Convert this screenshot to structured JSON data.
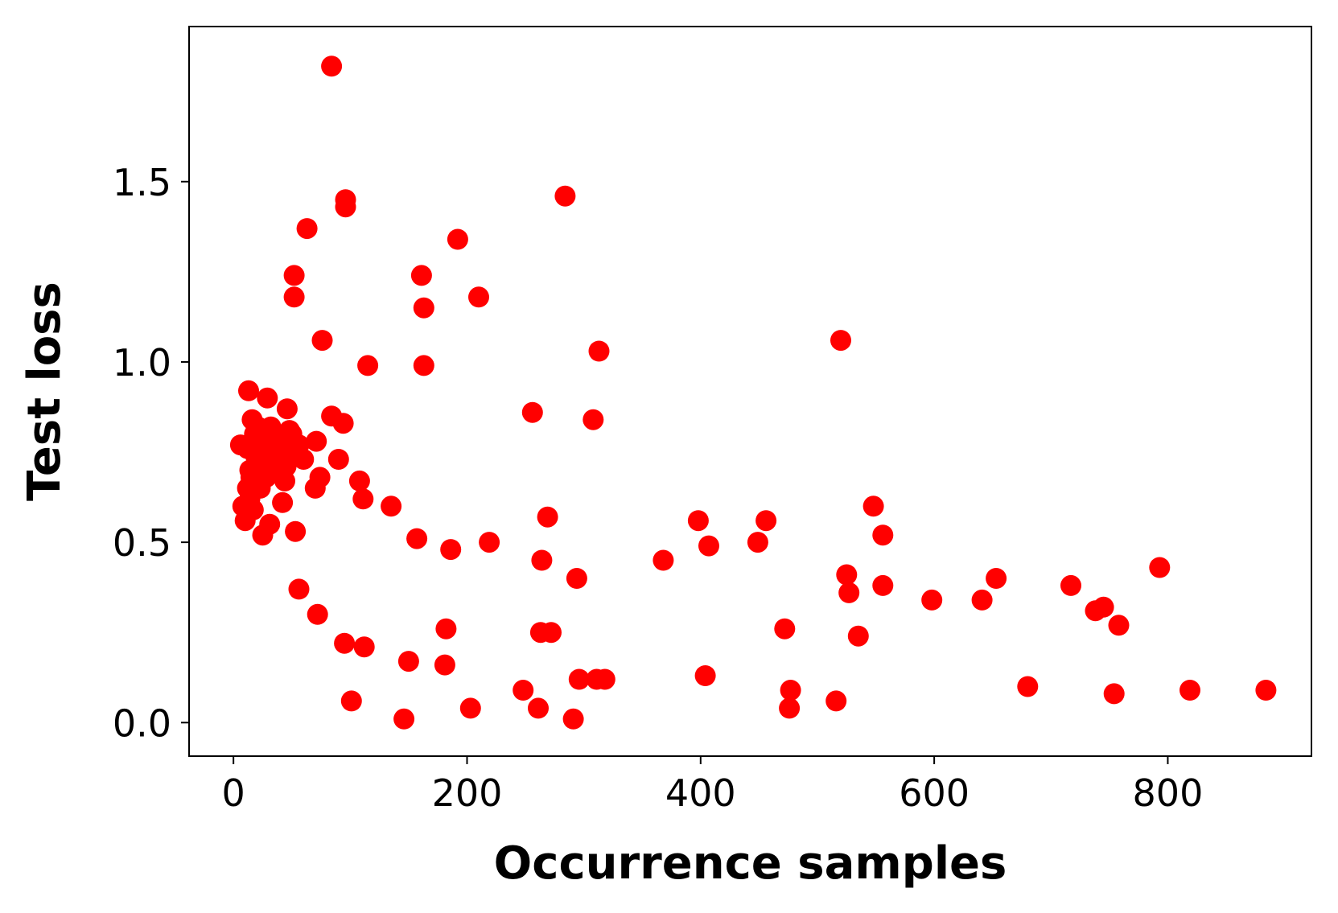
{
  "chart_data": {
    "type": "scatter",
    "title": "",
    "xlabel": "Occurrence samples",
    "ylabel": "Test loss",
    "xlim": [
      -38,
      923
    ],
    "ylim": [
      -0.093,
      1.93
    ],
    "xticks": [
      0,
      200,
      400,
      600,
      800
    ],
    "xtick_labels": [
      "0",
      "200",
      "400",
      "600",
      "800"
    ],
    "yticks": [
      0.0,
      0.5,
      1.0,
      1.5
    ],
    "ytick_labels": [
      "0.0",
      "0.5",
      "1.0",
      "1.5"
    ],
    "grid": false,
    "marker_color": "#ff0000",
    "series": [
      {
        "points": [
          [
            84,
            1.82
          ],
          [
            284,
            1.46
          ],
          [
            96,
            1.45
          ],
          [
            96,
            1.43
          ],
          [
            63,
            1.37
          ],
          [
            192,
            1.34
          ],
          [
            52,
            1.24
          ],
          [
            161,
            1.24
          ],
          [
            52,
            1.18
          ],
          [
            210,
            1.18
          ],
          [
            163,
            1.15
          ],
          [
            520,
            1.06
          ],
          [
            76,
            1.06
          ],
          [
            313,
            1.03
          ],
          [
            115,
            0.99
          ],
          [
            163,
            0.99
          ],
          [
            256,
            0.86
          ],
          [
            308,
            0.84
          ],
          [
            13,
            0.92
          ],
          [
            29,
            0.9
          ],
          [
            46,
            0.87
          ],
          [
            84,
            0.85
          ],
          [
            94,
            0.83
          ],
          [
            71,
            0.78
          ],
          [
            90,
            0.73
          ],
          [
            108,
            0.67
          ],
          [
            111,
            0.62
          ],
          [
            135,
            0.6
          ],
          [
            74,
            0.68
          ],
          [
            70,
            0.65
          ],
          [
            6,
            0.77
          ],
          [
            8,
            0.6
          ],
          [
            10,
            0.56
          ],
          [
            12,
            0.65
          ],
          [
            14,
            0.7
          ],
          [
            16,
            0.84
          ],
          [
            18,
            0.8
          ],
          [
            20,
            0.76
          ],
          [
            22,
            0.73
          ],
          [
            24,
            0.78
          ],
          [
            26,
            0.72
          ],
          [
            28,
            0.68
          ],
          [
            30,
            0.74
          ],
          [
            32,
            0.82
          ],
          [
            34,
            0.77
          ],
          [
            36,
            0.7
          ],
          [
            38,
            0.75
          ],
          [
            40,
            0.79
          ],
          [
            42,
            0.61
          ],
          [
            44,
            0.67
          ],
          [
            48,
            0.81
          ],
          [
            50,
            0.8
          ],
          [
            56,
            0.77
          ],
          [
            60,
            0.73
          ],
          [
            12,
            0.76
          ],
          [
            14,
            0.62
          ],
          [
            17,
            0.59
          ],
          [
            19,
            0.74
          ],
          [
            21,
            0.82
          ],
          [
            23,
            0.65
          ],
          [
            25,
            0.52
          ],
          [
            27,
            0.69
          ],
          [
            31,
            0.55
          ],
          [
            33,
            0.71
          ],
          [
            35,
            0.78
          ],
          [
            37,
            0.75
          ],
          [
            39,
            0.73
          ],
          [
            41,
            0.69
          ],
          [
            43,
            0.76
          ],
          [
            45,
            0.71
          ],
          [
            47,
            0.73
          ],
          [
            15,
            0.68
          ],
          [
            53,
            0.53
          ],
          [
            157,
            0.51
          ],
          [
            186,
            0.48
          ],
          [
            219,
            0.5
          ],
          [
            269,
            0.57
          ],
          [
            264,
            0.45
          ],
          [
            294,
            0.4
          ],
          [
            368,
            0.45
          ],
          [
            398,
            0.56
          ],
          [
            407,
            0.49
          ],
          [
            449,
            0.5
          ],
          [
            456,
            0.56
          ],
          [
            548,
            0.6
          ],
          [
            556,
            0.52
          ],
          [
            525,
            0.41
          ],
          [
            527,
            0.36
          ],
          [
            556,
            0.38
          ],
          [
            598,
            0.34
          ],
          [
            641,
            0.34
          ],
          [
            653,
            0.4
          ],
          [
            717,
            0.38
          ],
          [
            738,
            0.31
          ],
          [
            745,
            0.32
          ],
          [
            758,
            0.27
          ],
          [
            793,
            0.43
          ],
          [
            56,
            0.37
          ],
          [
            72,
            0.3
          ],
          [
            95,
            0.22
          ],
          [
            112,
            0.21
          ],
          [
            182,
            0.26
          ],
          [
            150,
            0.17
          ],
          [
            181,
            0.16
          ],
          [
            472,
            0.26
          ],
          [
            535,
            0.24
          ],
          [
            263,
            0.25
          ],
          [
            272,
            0.25
          ],
          [
            248,
            0.09
          ],
          [
            261,
            0.04
          ],
          [
            296,
            0.12
          ],
          [
            311,
            0.12
          ],
          [
            318,
            0.12
          ],
          [
            404,
            0.13
          ],
          [
            477,
            0.09
          ],
          [
            476,
            0.04
          ],
          [
            516,
            0.06
          ],
          [
            680,
            0.1
          ],
          [
            754,
            0.08
          ],
          [
            819,
            0.09
          ],
          [
            884,
            0.09
          ],
          [
            101,
            0.06
          ],
          [
            146,
            0.01
          ],
          [
            203,
            0.04
          ],
          [
            291,
            0.01
          ]
        ]
      }
    ]
  }
}
